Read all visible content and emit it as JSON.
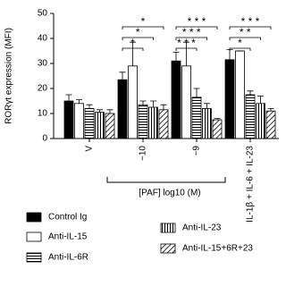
{
  "chart_data": {
    "type": "bar",
    "ylabel": "RORγt expression (MFI)",
    "xlabel": "[PAF] log10 (M)",
    "categories": [
      "V",
      "−10",
      "−9",
      "IL-1β + IL-6 + IL-23"
    ],
    "ylim": [
      0,
      50
    ],
    "yticks": [
      0,
      10,
      20,
      30,
      40,
      50
    ],
    "series": [
      {
        "name": "Control Ig",
        "color": "#000000",
        "pattern": "solid",
        "values": [
          15,
          23.5,
          31,
          31.5
        ],
        "errors": [
          2.5,
          3,
          3.5,
          4
        ]
      },
      {
        "name": "Anti-IL-15",
        "color": "#000000",
        "pattern": "none",
        "values": [
          14,
          29,
          29,
          35
        ],
        "errors": [
          1.5,
          9.5,
          9.5,
          0
        ]
      },
      {
        "name": "Anti-IL-6R",
        "color": "#000000",
        "pattern": "horizontal",
        "values": [
          12,
          13.5,
          16.5,
          17.5
        ],
        "errors": [
          1.5,
          1.5,
          3.5,
          1.5
        ]
      },
      {
        "name": "Anti-IL-23",
        "color": "#000000",
        "pattern": "vertical",
        "values": [
          10.5,
          12.5,
          12,
          14
        ],
        "errors": [
          1,
          2.5,
          2,
          3
        ]
      },
      {
        "name": "Anti-IL-15+6R+23",
        "color": "#000000",
        "pattern": "diagonal",
        "values": [
          10,
          11.5,
          7.5,
          11
        ],
        "errors": [
          1.5,
          2,
          0.5,
          1
        ]
      }
    ],
    "annotations": [
      "*",
      "*",
      "*",
      "* * *",
      "* * *",
      "* * *",
      "* * *",
      "* *",
      "*"
    ]
  }
}
